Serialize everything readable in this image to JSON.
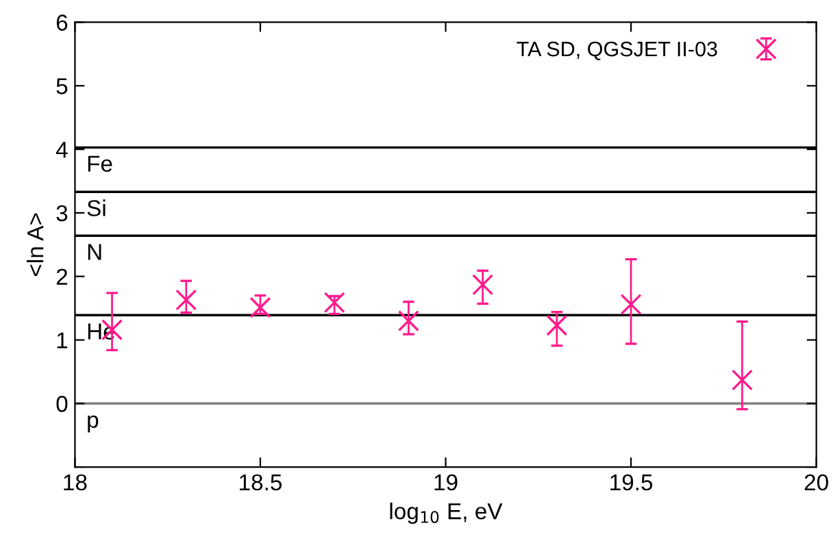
{
  "chart_data": {
    "type": "scatter",
    "xlabel": "log$_{10}$ E, eV",
    "ylabel": "<ln A>",
    "xlim": [
      18,
      20
    ],
    "xticks": [
      18,
      {
        "value": 18.5,
        "label": "18.5"
      },
      19,
      {
        "value": 19.5,
        "label": "19.5"
      },
      20
    ],
    "ylim": [
      -1,
      6
    ],
    "yticks": [
      {
        "value": -1,
        "label": null
      },
      0,
      1,
      2,
      3,
      4,
      5,
      6
    ],
    "x": [
      18.1,
      18.3,
      18.5,
      18.7,
      18.9,
      19.1,
      19.3,
      19.5,
      19.8
    ],
    "series": [
      {
        "name": "TA SD, QGSJET II-03",
        "color": "#ff1a8c",
        "values": [
          1.16,
          1.63,
          1.51,
          1.59,
          1.3,
          1.87,
          1.23,
          1.56,
          0.37
        ],
        "errors": [
          [
            0.84,
            1.74
          ],
          [
            1.43,
            1.93
          ],
          [
            1.41,
            1.7
          ],
          [
            1.41,
            1.69
          ],
          [
            1.09,
            1.6
          ],
          [
            1.57,
            2.09
          ],
          [
            0.91,
            1.44
          ],
          [
            0.94,
            2.27
          ],
          [
            -0.09,
            1.29
          ]
        ]
      }
    ],
    "marker": "cross",
    "legend": "top right",
    "grid": false,
    "ref_lines": [
      {
        "axis": "y",
        "value": 4.03,
        "label": "Fe",
        "color": "#000000"
      },
      {
        "axis": "y",
        "value": 3.33,
        "label": "Si",
        "color": "#000000"
      },
      {
        "axis": "y",
        "value": 2.64,
        "label": "N",
        "color": "#000000"
      },
      {
        "axis": "y",
        "value": 1.39,
        "label": "He",
        "color": "#000000"
      },
      {
        "axis": "y",
        "value": 0,
        "label": "p",
        "color": "#808080"
      }
    ]
  }
}
